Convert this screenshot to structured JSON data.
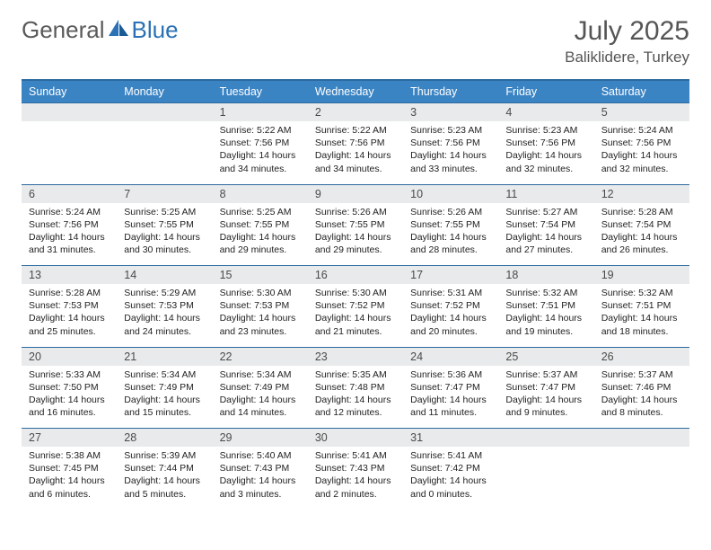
{
  "logo": {
    "general": "General",
    "blue": "Blue"
  },
  "title": "July 2025",
  "location": "Baliklidere, Turkey",
  "colors": {
    "header_bg": "#3b84c4",
    "header_border": "#2c6aa0",
    "daynum_bg": "#e9eaeb",
    "text_dark": "#222222",
    "text_gray": "#555555",
    "logo_gray": "#5a5a5a",
    "logo_blue": "#2a72b5"
  },
  "day_headers": [
    "Sunday",
    "Monday",
    "Tuesday",
    "Wednesday",
    "Thursday",
    "Friday",
    "Saturday"
  ],
  "weeks": [
    [
      null,
      null,
      {
        "n": "1",
        "sr": "5:22 AM",
        "ss": "7:56 PM",
        "dl": "14 hours and 34 minutes."
      },
      {
        "n": "2",
        "sr": "5:22 AM",
        "ss": "7:56 PM",
        "dl": "14 hours and 34 minutes."
      },
      {
        "n": "3",
        "sr": "5:23 AM",
        "ss": "7:56 PM",
        "dl": "14 hours and 33 minutes."
      },
      {
        "n": "4",
        "sr": "5:23 AM",
        "ss": "7:56 PM",
        "dl": "14 hours and 32 minutes."
      },
      {
        "n": "5",
        "sr": "5:24 AM",
        "ss": "7:56 PM",
        "dl": "14 hours and 32 minutes."
      }
    ],
    [
      {
        "n": "6",
        "sr": "5:24 AM",
        "ss": "7:56 PM",
        "dl": "14 hours and 31 minutes."
      },
      {
        "n": "7",
        "sr": "5:25 AM",
        "ss": "7:55 PM",
        "dl": "14 hours and 30 minutes."
      },
      {
        "n": "8",
        "sr": "5:25 AM",
        "ss": "7:55 PM",
        "dl": "14 hours and 29 minutes."
      },
      {
        "n": "9",
        "sr": "5:26 AM",
        "ss": "7:55 PM",
        "dl": "14 hours and 29 minutes."
      },
      {
        "n": "10",
        "sr": "5:26 AM",
        "ss": "7:55 PM",
        "dl": "14 hours and 28 minutes."
      },
      {
        "n": "11",
        "sr": "5:27 AM",
        "ss": "7:54 PM",
        "dl": "14 hours and 27 minutes."
      },
      {
        "n": "12",
        "sr": "5:28 AM",
        "ss": "7:54 PM",
        "dl": "14 hours and 26 minutes."
      }
    ],
    [
      {
        "n": "13",
        "sr": "5:28 AM",
        "ss": "7:53 PM",
        "dl": "14 hours and 25 minutes."
      },
      {
        "n": "14",
        "sr": "5:29 AM",
        "ss": "7:53 PM",
        "dl": "14 hours and 24 minutes."
      },
      {
        "n": "15",
        "sr": "5:30 AM",
        "ss": "7:53 PM",
        "dl": "14 hours and 23 minutes."
      },
      {
        "n": "16",
        "sr": "5:30 AM",
        "ss": "7:52 PM",
        "dl": "14 hours and 21 minutes."
      },
      {
        "n": "17",
        "sr": "5:31 AM",
        "ss": "7:52 PM",
        "dl": "14 hours and 20 minutes."
      },
      {
        "n": "18",
        "sr": "5:32 AM",
        "ss": "7:51 PM",
        "dl": "14 hours and 19 minutes."
      },
      {
        "n": "19",
        "sr": "5:32 AM",
        "ss": "7:51 PM",
        "dl": "14 hours and 18 minutes."
      }
    ],
    [
      {
        "n": "20",
        "sr": "5:33 AM",
        "ss": "7:50 PM",
        "dl": "14 hours and 16 minutes."
      },
      {
        "n": "21",
        "sr": "5:34 AM",
        "ss": "7:49 PM",
        "dl": "14 hours and 15 minutes."
      },
      {
        "n": "22",
        "sr": "5:34 AM",
        "ss": "7:49 PM",
        "dl": "14 hours and 14 minutes."
      },
      {
        "n": "23",
        "sr": "5:35 AM",
        "ss": "7:48 PM",
        "dl": "14 hours and 12 minutes."
      },
      {
        "n": "24",
        "sr": "5:36 AM",
        "ss": "7:47 PM",
        "dl": "14 hours and 11 minutes."
      },
      {
        "n": "25",
        "sr": "5:37 AM",
        "ss": "7:47 PM",
        "dl": "14 hours and 9 minutes."
      },
      {
        "n": "26",
        "sr": "5:37 AM",
        "ss": "7:46 PM",
        "dl": "14 hours and 8 minutes."
      }
    ],
    [
      {
        "n": "27",
        "sr": "5:38 AM",
        "ss": "7:45 PM",
        "dl": "14 hours and 6 minutes."
      },
      {
        "n": "28",
        "sr": "5:39 AM",
        "ss": "7:44 PM",
        "dl": "14 hours and 5 minutes."
      },
      {
        "n": "29",
        "sr": "5:40 AM",
        "ss": "7:43 PM",
        "dl": "14 hours and 3 minutes."
      },
      {
        "n": "30",
        "sr": "5:41 AM",
        "ss": "7:43 PM",
        "dl": "14 hours and 2 minutes."
      },
      {
        "n": "31",
        "sr": "5:41 AM",
        "ss": "7:42 PM",
        "dl": "14 hours and 0 minutes."
      },
      null,
      null
    ]
  ],
  "labels": {
    "sunrise": "Sunrise: ",
    "sunset": "Sunset: ",
    "daylight": "Daylight: "
  }
}
